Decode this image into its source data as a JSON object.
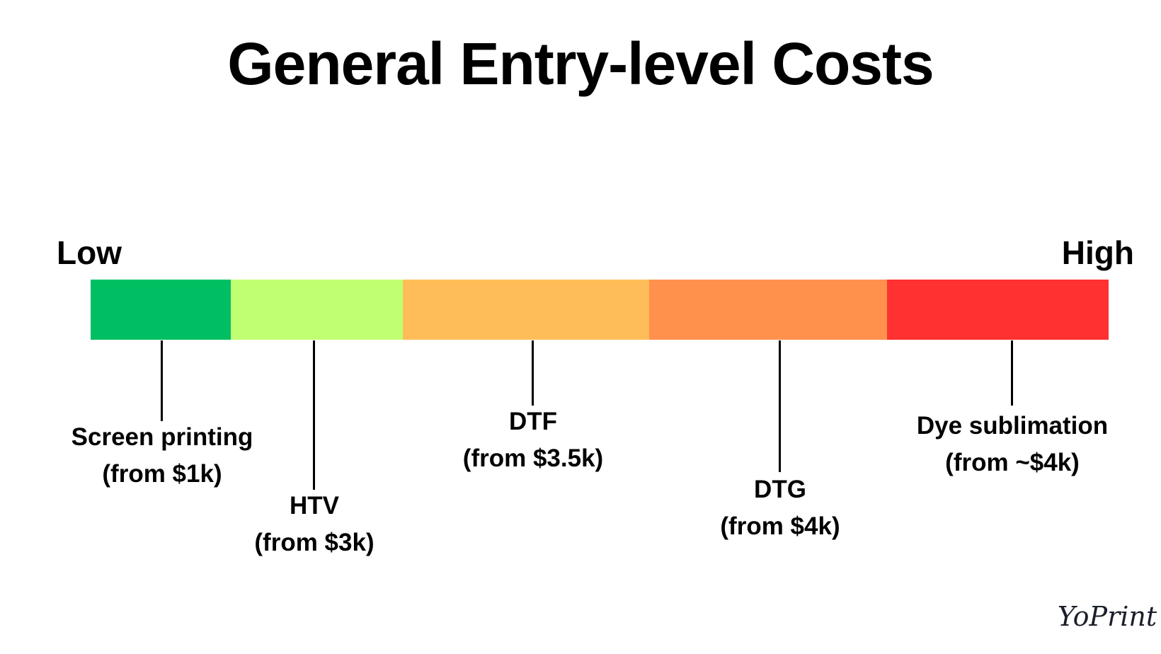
{
  "title": "General Entry-level Costs",
  "scale": {
    "low_label": "Low",
    "high_label": "High"
  },
  "segments": [
    {
      "color": "#00BF63"
    },
    {
      "color": "#C1FF72"
    },
    {
      "color": "#FFBD59"
    },
    {
      "color": "#FF914D"
    },
    {
      "color": "#FF3131"
    }
  ],
  "methods": [
    {
      "name": "Screen printing",
      "cost": "(from $1k)"
    },
    {
      "name": "HTV",
      "cost": "(from $3k)"
    },
    {
      "name": "DTF",
      "cost": "(from $3.5k)"
    },
    {
      "name": "DTG",
      "cost": "(from $4k)"
    },
    {
      "name": "Dye sublimation",
      "cost": "(from ~$4k)"
    }
  ],
  "logo": {
    "text": "YoPrint"
  }
}
